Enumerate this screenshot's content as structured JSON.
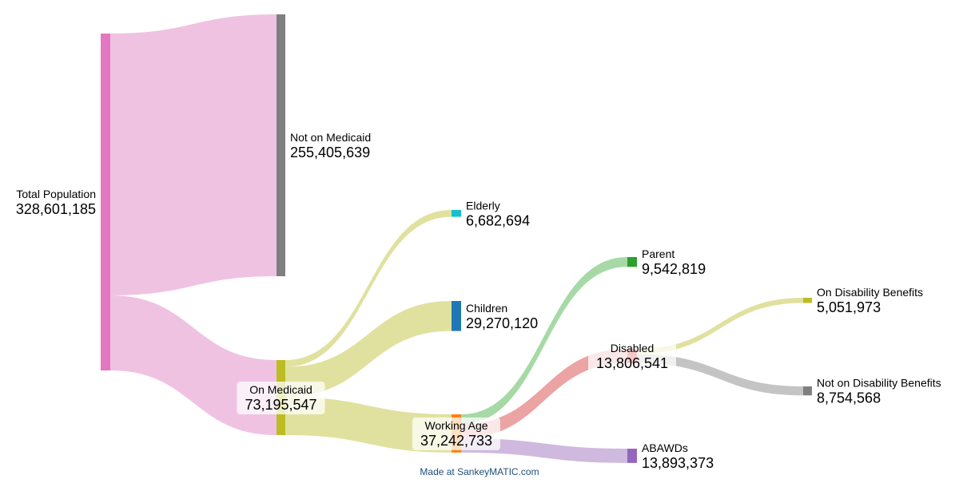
{
  "nodes": [
    {
      "id": "total",
      "label": "Total Population",
      "value": "328,601,185",
      "color": "#e377c2"
    },
    {
      "id": "not_medicaid",
      "label": "Not on Medicaid",
      "value": "255,405,639",
      "color": "#7f7f7f"
    },
    {
      "id": "on_medicaid",
      "label": "On Medicaid",
      "value": "73,195,547",
      "color": "#bcbd22"
    },
    {
      "id": "elderly",
      "label": "Elderly",
      "value": "6,682,694",
      "color": "#17becf"
    },
    {
      "id": "children",
      "label": "Children",
      "value": "29,270,120",
      "color": "#1f77b4"
    },
    {
      "id": "working_age",
      "label": "Working Age",
      "value": "37,242,733",
      "color": "#ff7f0e"
    },
    {
      "id": "parent",
      "label": "Parent",
      "value": "9,542,819",
      "color": "#2ca02c"
    },
    {
      "id": "disabled",
      "label": "Disabled",
      "value": "13,806,541",
      "color": "#d62728"
    },
    {
      "id": "abawds",
      "label": "ABAWDs",
      "value": "13,893,373",
      "color": "#9467bd"
    },
    {
      "id": "on_disability",
      "label": "On Disability Benefits",
      "value": "5,051,973",
      "color": "#bcbd22"
    },
    {
      "id": "not_disability",
      "label": "Not on Disability Benefits",
      "value": "8,754,568",
      "color": "#7f7f7f"
    }
  ],
  "flows": [
    {
      "from": "total",
      "to": "not_medicaid",
      "value": 255405639,
      "color": "#f0c2e2"
    },
    {
      "from": "total",
      "to": "on_medicaid",
      "value": 73195547,
      "color": "#f0c2e2"
    },
    {
      "from": "on_medicaid",
      "to": "elderly",
      "value": 6682694,
      "color": "#e1e19f"
    },
    {
      "from": "on_medicaid",
      "to": "children",
      "value": 29270120,
      "color": "#e1e19f"
    },
    {
      "from": "on_medicaid",
      "to": "working_age",
      "value": 37242733,
      "color": "#e1e19f"
    },
    {
      "from": "working_age",
      "to": "parent",
      "value": 9542819,
      "color": "#a6d9a6"
    },
    {
      "from": "working_age",
      "to": "disabled",
      "value": 13806541,
      "color": "#eba3a3"
    },
    {
      "from": "working_age",
      "to": "abawds",
      "value": 13893373,
      "color": "#cfb9de"
    },
    {
      "from": "disabled",
      "to": "on_disability",
      "value": 5051973,
      "color": "#e1e19f"
    },
    {
      "from": "disabled",
      "to": "not_disability",
      "value": 8754568,
      "color": "#c4c4c4"
    }
  ],
  "credit": "Made at SankeyMATIC.com"
}
